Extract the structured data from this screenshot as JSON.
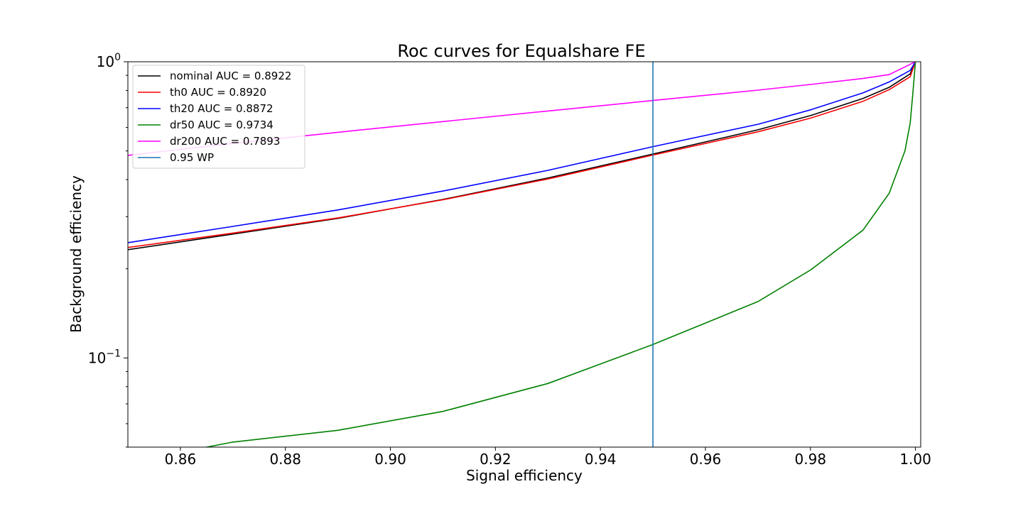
{
  "chart_data": {
    "type": "line",
    "title": "Roc curves for Equalshare FE",
    "xlabel": "Signal efficiency",
    "ylabel": "Background efficiency",
    "xlim": [
      0.85,
      1.001
    ],
    "ylim": [
      0.05,
      1.0
    ],
    "yscale": "log",
    "x_ticks": [
      0.86,
      0.88,
      0.9,
      0.92,
      0.94,
      0.96,
      0.98,
      1.0
    ],
    "x_tick_labels": [
      "0.86",
      "0.88",
      "0.90",
      "0.92",
      "0.94",
      "0.96",
      "0.98",
      "1.00"
    ],
    "y_tick_labels": [
      {
        "value": 1.0,
        "base": "10",
        "exp": "0"
      },
      {
        "value": 0.1,
        "base": "10",
        "exp": "−1"
      }
    ],
    "grid": false,
    "legend_position": "top-left",
    "series": [
      {
        "name": "nominal AUC = 0.8922",
        "color": "#000000",
        "x": [
          0.85,
          0.87,
          0.89,
          0.91,
          0.93,
          0.95,
          0.97,
          0.98,
          0.99,
          0.995,
          0.999,
          1.0
        ],
        "y": [
          0.232,
          0.262,
          0.296,
          0.343,
          0.405,
          0.488,
          0.589,
          0.658,
          0.752,
          0.82,
          0.91,
          1.0
        ]
      },
      {
        "name": "th0 AUC = 0.8920",
        "color": "#ff0000",
        "x": [
          0.85,
          0.87,
          0.89,
          0.91,
          0.93,
          0.95,
          0.97,
          0.98,
          0.99,
          0.995,
          0.999,
          1.0
        ],
        "y": [
          0.236,
          0.264,
          0.297,
          0.342,
          0.402,
          0.484,
          0.58,
          0.645,
          0.735,
          0.805,
          0.89,
          1.0
        ]
      },
      {
        "name": "th20 AUC = 0.8872",
        "color": "#0000ff",
        "x": [
          0.85,
          0.87,
          0.89,
          0.91,
          0.93,
          0.95,
          0.97,
          0.98,
          0.99,
          0.995,
          0.999,
          1.0
        ],
        "y": [
          0.245,
          0.278,
          0.316,
          0.366,
          0.43,
          0.517,
          0.615,
          0.688,
          0.785,
          0.855,
          0.935,
          1.0
        ]
      },
      {
        "name": "dr50 AUC = 0.9734",
        "color": "#008000",
        "x": [
          0.85,
          0.86,
          0.865,
          0.87,
          0.89,
          0.91,
          0.93,
          0.95,
          0.97,
          0.98,
          0.99,
          0.995,
          0.998,
          0.999,
          0.9995,
          1.0
        ],
        "y": [
          0.045,
          0.048,
          0.05,
          0.052,
          0.057,
          0.066,
          0.082,
          0.111,
          0.155,
          0.198,
          0.27,
          0.36,
          0.5,
          0.62,
          0.78,
          1.0
        ]
      },
      {
        "name": "dr200 AUC = 0.7893",
        "color": "#ff00ff",
        "x": [
          0.85,
          0.87,
          0.89,
          0.91,
          0.93,
          0.95,
          0.97,
          0.98,
          0.99,
          0.995,
          1.0
        ],
        "y": [
          0.483,
          0.53,
          0.578,
          0.628,
          0.682,
          0.74,
          0.802,
          0.838,
          0.878,
          0.905,
          1.0
        ]
      }
    ],
    "vline": {
      "name": "0.95 WP",
      "x": 0.95,
      "color": "#1f77b4"
    }
  }
}
